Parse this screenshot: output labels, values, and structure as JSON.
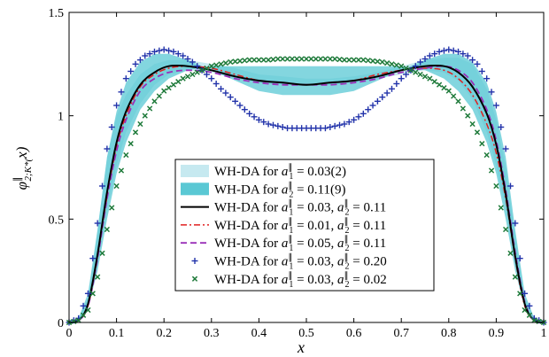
{
  "chart_data": {
    "type": "line",
    "xlabel": "x",
    "ylabel": "φ∥2;K*(x)",
    "xlim": [
      0,
      1
    ],
    "ylim": [
      0,
      1.5
    ],
    "xticks": [
      "0",
      "0.1",
      "0.2",
      "0.3",
      "0.4",
      "0.5",
      "0.6",
      "0.7",
      "0.8",
      "0.9",
      "1"
    ],
    "yticks": [
      "0",
      "0.5",
      "1",
      "1.5"
    ],
    "grid": false,
    "legend_position": "bottom-center",
    "colors": {
      "band_a1": "#c6e9f0",
      "band_a2": "#5ac8d4",
      "central": "#000000",
      "a1_001": "#e02020",
      "a1_005": "#9a30b8",
      "plus": "#2233aa",
      "cross": "#1e7a3a"
    },
    "band_a1_upper": {
      "x": [
        0,
        0.02,
        0.04,
        0.06,
        0.08,
        0.1,
        0.12,
        0.15,
        0.18,
        0.21,
        0.25,
        0.3,
        0.35,
        0.4,
        0.45,
        0.5,
        0.55,
        0.6,
        0.65,
        0.7,
        0.75,
        0.79,
        0.82,
        0.85,
        0.88,
        0.9,
        0.92,
        0.94,
        0.96,
        0.98,
        1
      ],
      "y": [
        0,
        0.02,
        0.12,
        0.45,
        0.8,
        1.0,
        1.1,
        1.2,
        1.25,
        1.27,
        1.27,
        1.25,
        1.23,
        1.2,
        1.19,
        1.18,
        1.18,
        1.19,
        1.21,
        1.24,
        1.27,
        1.28,
        1.28,
        1.25,
        1.13,
        0.98,
        0.75,
        0.42,
        0.12,
        0.02,
        0
      ]
    },
    "band_a1_lower": {
      "x": [
        0,
        0.02,
        0.04,
        0.06,
        0.08,
        0.1,
        0.12,
        0.15,
        0.18,
        0.21,
        0.25,
        0.3,
        0.35,
        0.4,
        0.45,
        0.5,
        0.55,
        0.6,
        0.65,
        0.7,
        0.75,
        0.79,
        0.82,
        0.85,
        0.88,
        0.9,
        0.92,
        0.94,
        0.96,
        0.98,
        1
      ],
      "y": [
        0,
        0.01,
        0.07,
        0.28,
        0.55,
        0.76,
        0.92,
        1.06,
        1.15,
        1.2,
        1.22,
        1.21,
        1.18,
        1.16,
        1.15,
        1.15,
        1.15,
        1.16,
        1.18,
        1.2,
        1.22,
        1.21,
        1.17,
        1.08,
        0.92,
        0.76,
        0.55,
        0.28,
        0.07,
        0.01,
        0
      ]
    },
    "band_a2_upper": {
      "x": [
        0,
        0.02,
        0.04,
        0.06,
        0.08,
        0.1,
        0.12,
        0.15,
        0.18,
        0.21,
        0.25,
        0.3,
        0.35,
        0.4,
        0.45,
        0.5,
        0.55,
        0.6,
        0.65,
        0.7,
        0.75,
        0.79,
        0.82,
        0.85,
        0.88,
        0.9,
        0.92,
        0.94,
        0.96,
        0.98,
        1
      ],
      "y": [
        0,
        0.02,
        0.14,
        0.45,
        0.8,
        1.02,
        1.16,
        1.26,
        1.3,
        1.3,
        1.27,
        1.22,
        1.17,
        1.12,
        1.1,
        1.1,
        1.1,
        1.12,
        1.17,
        1.22,
        1.27,
        1.3,
        1.3,
        1.26,
        1.16,
        1.02,
        0.8,
        0.45,
        0.14,
        0.02,
        0
      ]
    },
    "band_a2_lower": {
      "x": [
        0,
        0.02,
        0.04,
        0.06,
        0.08,
        0.1,
        0.12,
        0.15,
        0.18,
        0.21,
        0.25,
        0.3,
        0.35,
        0.4,
        0.45,
        0.5,
        0.55,
        0.6,
        0.65,
        0.7,
        0.75,
        0.79,
        0.82,
        0.85,
        0.88,
        0.9,
        0.92,
        0.94,
        0.96,
        0.98,
        1
      ],
      "y": [
        0,
        0.01,
        0.07,
        0.25,
        0.5,
        0.72,
        0.87,
        1.03,
        1.12,
        1.18,
        1.22,
        1.24,
        1.24,
        1.24,
        1.24,
        1.24,
        1.24,
        1.24,
        1.24,
        1.24,
        1.22,
        1.18,
        1.12,
        1.03,
        0.87,
        0.72,
        0.5,
        0.25,
        0.07,
        0.01,
        0
      ]
    },
    "series": [
      {
        "name": "WH-DA for a∥1 = 0.03, a∥2 = 0.11",
        "x": [
          0,
          0.02,
          0.04,
          0.06,
          0.08,
          0.1,
          0.12,
          0.15,
          0.18,
          0.21,
          0.25,
          0.3,
          0.35,
          0.4,
          0.45,
          0.5,
          0.55,
          0.6,
          0.65,
          0.7,
          0.75,
          0.79,
          0.82,
          0.85,
          0.88,
          0.9,
          0.92,
          0.94,
          0.96,
          0.98,
          1
        ],
        "y": [
          0,
          0.01,
          0.09,
          0.33,
          0.63,
          0.87,
          1.02,
          1.15,
          1.21,
          1.24,
          1.24,
          1.22,
          1.19,
          1.17,
          1.16,
          1.15,
          1.16,
          1.17,
          1.19,
          1.22,
          1.24,
          1.24,
          1.21,
          1.14,
          1.01,
          0.86,
          0.62,
          0.32,
          0.09,
          0.01,
          0
        ]
      },
      {
        "name": "WH-DA for a∥1 = 0.01, a∥2 = 0.11",
        "x": [
          0,
          0.02,
          0.04,
          0.06,
          0.08,
          0.1,
          0.12,
          0.15,
          0.18,
          0.21,
          0.25,
          0.3,
          0.35,
          0.4,
          0.45,
          0.5,
          0.55,
          0.6,
          0.65,
          0.7,
          0.75,
          0.79,
          0.82,
          0.85,
          0.88,
          0.9,
          0.92,
          0.94,
          0.96,
          0.98,
          1
        ],
        "y": [
          0,
          0.01,
          0.08,
          0.32,
          0.61,
          0.85,
          1.0,
          1.14,
          1.2,
          1.23,
          1.24,
          1.23,
          1.2,
          1.17,
          1.16,
          1.15,
          1.16,
          1.17,
          1.2,
          1.22,
          1.23,
          1.22,
          1.18,
          1.1,
          0.96,
          0.82,
          0.6,
          0.31,
          0.08,
          0.01,
          0
        ]
      },
      {
        "name": "WH-DA for a∥1 = 0.05, a∥2 = 0.11",
        "x": [
          0,
          0.02,
          0.04,
          0.06,
          0.08,
          0.1,
          0.12,
          0.15,
          0.18,
          0.21,
          0.25,
          0.3,
          0.35,
          0.4,
          0.45,
          0.5,
          0.55,
          0.6,
          0.65,
          0.7,
          0.75,
          0.79,
          0.82,
          0.85,
          0.88,
          0.9,
          0.92,
          0.94,
          0.96,
          0.98,
          1
        ],
        "y": [
          0,
          0.01,
          0.08,
          0.31,
          0.6,
          0.83,
          0.98,
          1.12,
          1.18,
          1.21,
          1.22,
          1.21,
          1.18,
          1.16,
          1.15,
          1.15,
          1.15,
          1.16,
          1.18,
          1.21,
          1.23,
          1.24,
          1.22,
          1.16,
          1.03,
          0.88,
          0.64,
          0.34,
          0.1,
          0.01,
          0
        ]
      },
      {
        "name": "WH-DA for a∥1 = 0.03, a∥2 = 0.20",
        "x": [
          0,
          0.02,
          0.04,
          0.06,
          0.08,
          0.1,
          0.12,
          0.14,
          0.16,
          0.18,
          0.2,
          0.22,
          0.24,
          0.26,
          0.28,
          0.3,
          0.32,
          0.34,
          0.36,
          0.38,
          0.4,
          0.42,
          0.44,
          0.46,
          0.48,
          0.5,
          0.52,
          0.54,
          0.56,
          0.58,
          0.6,
          0.62,
          0.64,
          0.66,
          0.68,
          0.7,
          0.72,
          0.74,
          0.76,
          0.78,
          0.8,
          0.82,
          0.84,
          0.86,
          0.88,
          0.9,
          0.92,
          0.94,
          0.96,
          0.98,
          1
        ],
        "y": [
          0,
          0.02,
          0.14,
          0.48,
          0.84,
          1.05,
          1.18,
          1.25,
          1.29,
          1.31,
          1.32,
          1.31,
          1.29,
          1.26,
          1.22,
          1.18,
          1.13,
          1.09,
          1.05,
          1.01,
          0.98,
          0.96,
          0.95,
          0.94,
          0.94,
          0.94,
          0.94,
          0.94,
          0.95,
          0.96,
          0.98,
          1.01,
          1.05,
          1.09,
          1.13,
          1.18,
          1.22,
          1.26,
          1.29,
          1.31,
          1.32,
          1.31,
          1.29,
          1.25,
          1.18,
          1.05,
          0.84,
          0.48,
          0.14,
          0.02,
          0
        ]
      },
      {
        "name": "WH-DA for a∥1 = 0.03, a∥2 = 0.02",
        "x": [
          0,
          0.02,
          0.04,
          0.06,
          0.08,
          0.1,
          0.12,
          0.14,
          0.16,
          0.18,
          0.2,
          0.22,
          0.24,
          0.26,
          0.28,
          0.3,
          0.32,
          0.34,
          0.36,
          0.38,
          0.4,
          0.42,
          0.44,
          0.46,
          0.48,
          0.5,
          0.52,
          0.54,
          0.56,
          0.58,
          0.6,
          0.62,
          0.64,
          0.66,
          0.68,
          0.7,
          0.72,
          0.74,
          0.76,
          0.78,
          0.8,
          0.82,
          0.84,
          0.86,
          0.88,
          0.9,
          0.92,
          0.94,
          0.96,
          0.98,
          1
        ],
        "y": [
          0,
          0.01,
          0.06,
          0.22,
          0.45,
          0.66,
          0.81,
          0.92,
          1.0,
          1.07,
          1.12,
          1.15,
          1.18,
          1.2,
          1.22,
          1.24,
          1.25,
          1.26,
          1.265,
          1.27,
          1.27,
          1.27,
          1.275,
          1.275,
          1.275,
          1.275,
          1.275,
          1.275,
          1.275,
          1.27,
          1.27,
          1.27,
          1.265,
          1.26,
          1.25,
          1.24,
          1.22,
          1.2,
          1.18,
          1.15,
          1.12,
          1.07,
          1.0,
          0.92,
          0.81,
          0.66,
          0.45,
          0.22,
          0.06,
          0.01,
          0
        ]
      }
    ],
    "legend": [
      {
        "kind": "band-a1",
        "prefix": "WH-DA for ",
        "lhs": "a",
        "sub1": "1",
        "rhs": " = 0.03(2)"
      },
      {
        "kind": "band-a2",
        "prefix": "WH-DA for ",
        "lhs": "a",
        "sub1": "2",
        "rhs": " = 0.11(9)"
      },
      {
        "kind": "central",
        "prefix": "WH-DA for ",
        "lhs": "a",
        "sub1": "1",
        "mid": " = 0.03, ",
        "sub2": "2",
        "rhs": " = 0.11"
      },
      {
        "kind": "a1-001",
        "prefix": "WH-DA for ",
        "lhs": "a",
        "sub1": "1",
        "mid": " = 0.01, ",
        "sub2": "2",
        "rhs": " = 0.11"
      },
      {
        "kind": "a1-005",
        "prefix": "WH-DA for ",
        "lhs": "a",
        "sub1": "1",
        "mid": " = 0.05, ",
        "sub2": "2",
        "rhs": " = 0.11"
      },
      {
        "kind": "plus",
        "prefix": "WH-DA for ",
        "lhs": "a",
        "sub1": "1",
        "mid": " = 0.03, ",
        "sub2": "2",
        "rhs": " = 0.20"
      },
      {
        "kind": "cross",
        "prefix": "WH-DA for ",
        "lhs": "a",
        "sub1": "1",
        "mid": " = 0.03, ",
        "sub2": "2",
        "rhs": " = 0.02"
      }
    ]
  }
}
